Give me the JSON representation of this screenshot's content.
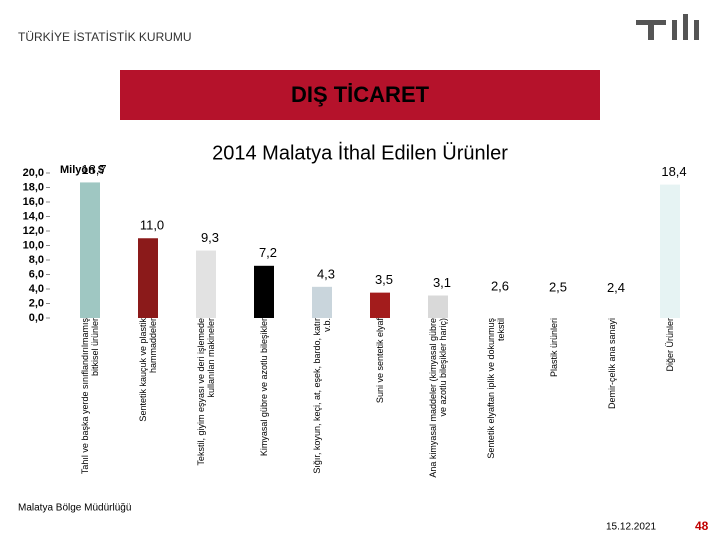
{
  "header": {
    "org": "TÜRKİYE İSTATİSTİK KURUMU",
    "section": "DIŞ TİCARET"
  },
  "chart_data": {
    "type": "bar",
    "title": "2014 Malatya İthal Edilen Ürünler",
    "y_label": "Milyon $",
    "categories": [
      "Tahıl ve başka yerde sınıflandırılmamış bitkisel ürünler",
      "Sentetik kauçuk ve plastik hammaddeler",
      "Tekstil, giyim eşyası ve deri işlemede kullanılan makineler",
      "Kimyasal gübre ve azotlu bileşikler",
      "Sığır, koyun, keçi, at, eşek, bardo, katır v.b.",
      "Suni ve sentetik elyaf",
      "Ana kimyasal maddeler (kimyasal gübre ve azotlu bileşikler hariç)",
      "Sentetik elyaftan iplik ve dokunmuş tekstil",
      "Plastik ürünleri",
      "Demir-çelik ana sanayi",
      "Diğer Ürünler"
    ],
    "values": [
      18.7,
      11.0,
      9.3,
      7.2,
      4.3,
      3.5,
      3.1,
      2.6,
      2.5,
      2.4,
      18.4
    ],
    "value_labels": [
      "18,7",
      "11,0",
      "9,3",
      "7,2",
      "4,3",
      "3,5",
      "3,1",
      "2,6",
      "2,5",
      "2,4",
      "18,4"
    ],
    "colors": [
      "#9fc7c2",
      "#8b1a1a",
      "#e2e2e2",
      "#000000",
      "#c9d5dc",
      "#a31c1c",
      "#d9d9d9",
      "#ffffff",
      "#ffffff",
      "#ffffff",
      "#e6f3f3"
    ],
    "ylim": [
      0,
      20
    ],
    "yticks": [
      {
        "value": 0,
        "label": "0,0"
      },
      {
        "value": 2,
        "label": "2,0"
      },
      {
        "value": 4,
        "label": "4,0"
      },
      {
        "value": 6,
        "label": "6,0"
      },
      {
        "value": 8,
        "label": "8,0"
      },
      {
        "value": 10,
        "label": "10,0"
      },
      {
        "value": 12,
        "label": "12,0"
      },
      {
        "value": 14,
        "label": "14,0"
      },
      {
        "value": 16,
        "label": "16,0"
      },
      {
        "value": 18,
        "label": "18,0"
      },
      {
        "value": 20,
        "label": "20,0"
      }
    ]
  },
  "footer": {
    "office": "Malatya Bölge Müdürlüğü",
    "date": "15.12.2021",
    "page": "48"
  }
}
